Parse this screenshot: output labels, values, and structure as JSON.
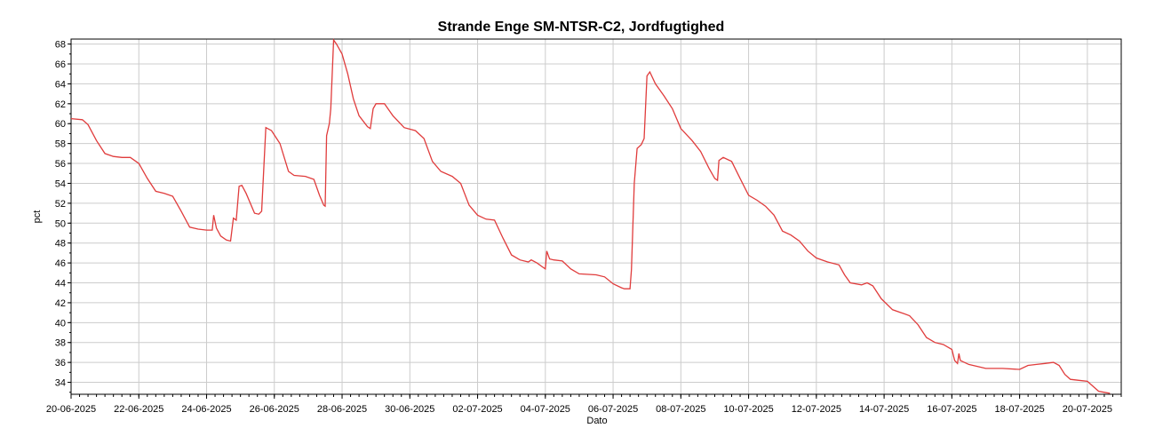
{
  "chart_data": {
    "type": "line",
    "title": "Strande Enge SM-NTSR-C2, Jordfugtighed",
    "xlabel": "Dato",
    "ylabel": "pct",
    "xlim": [
      "2025-06-20",
      "2025-07-21"
    ],
    "ylim": [
      32.8,
      68.5
    ],
    "grid": true,
    "line_color": "#e03c3c",
    "x_tick_labels": [
      "20-06-2025",
      "22-06-2025",
      "24-06-2025",
      "26-06-2025",
      "28-06-2025",
      "30-06-2025",
      "02-07-2025",
      "04-07-2025",
      "06-07-2025",
      "08-07-2025",
      "10-07-2025",
      "12-07-2025",
      "14-07-2025",
      "16-07-2025",
      "18-07-2025",
      "20-07-2025"
    ],
    "y_ticks": [
      34,
      36,
      38,
      40,
      42,
      44,
      46,
      48,
      50,
      52,
      54,
      56,
      58,
      60,
      62,
      64,
      66,
      68
    ],
    "series": [
      {
        "points": [
          [
            "2025-06-20 00:00",
            60.5
          ],
          [
            "2025-06-20 08:00",
            60.4
          ],
          [
            "2025-06-20 12:00",
            59.9
          ],
          [
            "2025-06-20 18:00",
            58.3
          ],
          [
            "2025-06-21 00:00",
            57.0
          ],
          [
            "2025-06-21 06:00",
            56.7
          ],
          [
            "2025-06-21 12:00",
            56.6
          ],
          [
            "2025-06-21 18:00",
            56.6
          ],
          [
            "2025-06-22 00:00",
            56.0
          ],
          [
            "2025-06-22 06:00",
            54.5
          ],
          [
            "2025-06-22 12:00",
            53.2
          ],
          [
            "2025-06-22 18:00",
            53.0
          ],
          [
            "2025-06-23 00:00",
            52.7
          ],
          [
            "2025-06-23 06:00",
            51.2
          ],
          [
            "2025-06-23 12:00",
            49.6
          ],
          [
            "2025-06-23 18:00",
            49.4
          ],
          [
            "2025-06-24 00:00",
            49.3
          ],
          [
            "2025-06-24 04:00",
            49.3
          ],
          [
            "2025-06-24 05:00",
            50.8
          ],
          [
            "2025-06-24 07:00",
            49.5
          ],
          [
            "2025-06-24 10:00",
            48.7
          ],
          [
            "2025-06-24 14:00",
            48.3
          ],
          [
            "2025-06-24 17:00",
            48.2
          ],
          [
            "2025-06-24 19:00",
            50.5
          ],
          [
            "2025-06-24 21:00",
            50.3
          ],
          [
            "2025-06-24 23:00",
            53.7
          ],
          [
            "2025-06-25 01:00",
            53.8
          ],
          [
            "2025-06-25 04:00",
            53.0
          ],
          [
            "2025-06-25 10:00",
            51.0
          ],
          [
            "2025-06-25 13:00",
            50.9
          ],
          [
            "2025-06-25 15:00",
            51.2
          ],
          [
            "2025-06-25 18:00",
            59.6
          ],
          [
            "2025-06-25 22:00",
            59.3
          ],
          [
            "2025-06-26 04:00",
            58.0
          ],
          [
            "2025-06-26 10:00",
            55.2
          ],
          [
            "2025-06-26 14:00",
            54.8
          ],
          [
            "2025-06-26 22:00",
            54.7
          ],
          [
            "2025-06-27 04:00",
            54.4
          ],
          [
            "2025-06-27 08:00",
            52.8
          ],
          [
            "2025-06-27 11:00",
            51.8
          ],
          [
            "2025-06-27 12:00",
            51.7
          ],
          [
            "2025-06-27 13:00",
            58.8
          ],
          [
            "2025-06-27 15:00",
            60.0
          ],
          [
            "2025-06-27 16:00",
            61.5
          ],
          [
            "2025-06-27 18:00",
            68.4
          ],
          [
            "2025-06-27 20:00",
            68.0
          ],
          [
            "2025-06-28 00:00",
            67.0
          ],
          [
            "2025-06-28 04:00",
            65.0
          ],
          [
            "2025-06-28 08:00",
            62.5
          ],
          [
            "2025-06-28 12:00",
            60.8
          ],
          [
            "2025-06-28 18:00",
            59.7
          ],
          [
            "2025-06-28 20:00",
            59.5
          ],
          [
            "2025-06-28 22:00",
            61.5
          ],
          [
            "2025-06-29 00:00",
            62.0
          ],
          [
            "2025-06-29 06:00",
            62.0
          ],
          [
            "2025-06-29 12:00",
            60.8
          ],
          [
            "2025-06-29 20:00",
            59.6
          ],
          [
            "2025-06-30 04:00",
            59.3
          ],
          [
            "2025-06-30 10:00",
            58.5
          ],
          [
            "2025-06-30 16:00",
            56.2
          ],
          [
            "2025-06-30 22:00",
            55.2
          ],
          [
            "2025-07-01 06:00",
            54.7
          ],
          [
            "2025-07-01 12:00",
            54.0
          ],
          [
            "2025-07-01 18:00",
            51.8
          ],
          [
            "2025-07-02 00:00",
            50.8
          ],
          [
            "2025-07-02 06:00",
            50.4
          ],
          [
            "2025-07-02 12:00",
            50.3
          ],
          [
            "2025-07-02 18:00",
            48.5
          ],
          [
            "2025-07-03 00:00",
            46.8
          ],
          [
            "2025-07-03 06:00",
            46.3
          ],
          [
            "2025-07-03 12:00",
            46.1
          ],
          [
            "2025-07-03 14:00",
            46.3
          ],
          [
            "2025-07-03 18:00",
            46.0
          ],
          [
            "2025-07-03 22:00",
            45.6
          ],
          [
            "2025-07-04 00:00",
            45.4
          ],
          [
            "2025-07-04 01:00",
            47.2
          ],
          [
            "2025-07-04 03:00",
            46.4
          ],
          [
            "2025-07-04 06:00",
            46.3
          ],
          [
            "2025-07-04 12:00",
            46.2
          ],
          [
            "2025-07-04 18:00",
            45.4
          ],
          [
            "2025-07-05 00:00",
            44.9
          ],
          [
            "2025-07-05 12:00",
            44.8
          ],
          [
            "2025-07-05 18:00",
            44.6
          ],
          [
            "2025-07-06 00:00",
            43.9
          ],
          [
            "2025-07-06 06:00",
            43.5
          ],
          [
            "2025-07-06 08:00",
            43.4
          ],
          [
            "2025-07-06 12:00",
            43.4
          ],
          [
            "2025-07-06 13:00",
            45.3
          ],
          [
            "2025-07-06 15:00",
            54.0
          ],
          [
            "2025-07-06 17:00",
            57.5
          ],
          [
            "2025-07-06 20:00",
            57.9
          ],
          [
            "2025-07-06 22:00",
            58.5
          ],
          [
            "2025-07-07 00:00",
            64.8
          ],
          [
            "2025-07-07 02:00",
            65.2
          ],
          [
            "2025-07-07 06:00",
            64.0
          ],
          [
            "2025-07-07 12:00",
            62.8
          ],
          [
            "2025-07-07 18:00",
            61.5
          ],
          [
            "2025-07-08 00:00",
            59.5
          ],
          [
            "2025-07-08 08:00",
            58.3
          ],
          [
            "2025-07-08 14:00",
            57.2
          ],
          [
            "2025-07-08 20:00",
            55.5
          ],
          [
            "2025-07-09 00:00",
            54.5
          ],
          [
            "2025-07-09 02:00",
            54.3
          ],
          [
            "2025-07-09 03:00",
            56.3
          ],
          [
            "2025-07-09 06:00",
            56.6
          ],
          [
            "2025-07-09 12:00",
            56.2
          ],
          [
            "2025-07-09 18:00",
            54.5
          ],
          [
            "2025-07-10 00:00",
            52.8
          ],
          [
            "2025-07-10 06:00",
            52.3
          ],
          [
            "2025-07-10 12:00",
            51.7
          ],
          [
            "2025-07-10 18:00",
            50.8
          ],
          [
            "2025-07-11 00:00",
            49.2
          ],
          [
            "2025-07-11 06:00",
            48.8
          ],
          [
            "2025-07-11 12:00",
            48.2
          ],
          [
            "2025-07-11 18:00",
            47.2
          ],
          [
            "2025-07-12 00:00",
            46.5
          ],
          [
            "2025-07-12 08:00",
            46.1
          ],
          [
            "2025-07-12 16:00",
            45.8
          ],
          [
            "2025-07-12 20:00",
            44.8
          ],
          [
            "2025-07-13 00:00",
            44.0
          ],
          [
            "2025-07-13 08:00",
            43.8
          ],
          [
            "2025-07-13 12:00",
            44.0
          ],
          [
            "2025-07-13 16:00",
            43.7
          ],
          [
            "2025-07-13 22:00",
            42.4
          ],
          [
            "2025-07-14 06:00",
            41.3
          ],
          [
            "2025-07-14 12:00",
            41.0
          ],
          [
            "2025-07-14 18:00",
            40.7
          ],
          [
            "2025-07-15 00:00",
            39.8
          ],
          [
            "2025-07-15 06:00",
            38.5
          ],
          [
            "2025-07-15 12:00",
            38.0
          ],
          [
            "2025-07-15 18:00",
            37.8
          ],
          [
            "2025-07-16 00:00",
            37.3
          ],
          [
            "2025-07-16 02:00",
            36.2
          ],
          [
            "2025-07-16 04:00",
            35.9
          ],
          [
            "2025-07-16 05:00",
            36.9
          ],
          [
            "2025-07-16 06:00",
            36.2
          ],
          [
            "2025-07-16 12:00",
            35.8
          ],
          [
            "2025-07-16 18:00",
            35.6
          ],
          [
            "2025-07-17 00:00",
            35.4
          ],
          [
            "2025-07-17 12:00",
            35.4
          ],
          [
            "2025-07-18 00:00",
            35.3
          ],
          [
            "2025-07-18 06:00",
            35.7
          ],
          [
            "2025-07-18 12:00",
            35.8
          ],
          [
            "2025-07-18 18:00",
            35.9
          ],
          [
            "2025-07-19 00:00",
            36.0
          ],
          [
            "2025-07-19 04:00",
            35.7
          ],
          [
            "2025-07-19 08:00",
            34.8
          ],
          [
            "2025-07-19 12:00",
            34.3
          ],
          [
            "2025-07-19 18:00",
            34.2
          ],
          [
            "2025-07-20 00:00",
            34.1
          ],
          [
            "2025-07-20 04:00",
            33.6
          ],
          [
            "2025-07-20 08:00",
            33.1
          ],
          [
            "2025-07-20 12:00",
            33.0
          ],
          [
            "2025-07-20 16:00",
            32.9
          ]
        ]
      }
    ]
  }
}
